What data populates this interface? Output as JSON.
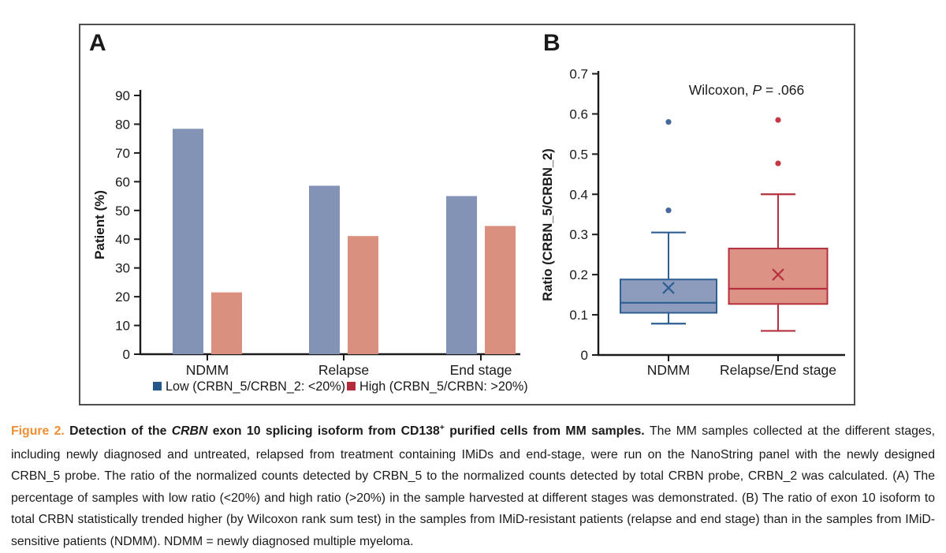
{
  "panels": {
    "a": "A",
    "b": "B"
  },
  "colors": {
    "bar_blue": "#8393b5",
    "bar_red": "#d9907f",
    "box_blue_fill": "#8d9cbd",
    "box_blue_stroke": "#2e5f93",
    "box_red_fill": "#dc9285",
    "box_red_stroke": "#b5303f",
    "legend_blue": "#24578a",
    "legend_red": "#b42b3b",
    "outlier_blue": "#46699b",
    "outlier_red": "#c23a46",
    "axis": "#1a1a1a",
    "caption_label_orange": "#ef8e33",
    "border_gray": "#4f4f4f"
  },
  "chart_data": [
    {
      "type": "bar",
      "panel": "A",
      "ylabel": "Patient (%)",
      "ylim": [
        0,
        90
      ],
      "yticks": [
        {
          "v": 0,
          "label": "0"
        },
        {
          "v": 10,
          "label": "10"
        },
        {
          "v": 20,
          "label": "20"
        },
        {
          "v": 30,
          "label": "30"
        },
        {
          "v": 40,
          "label": "40"
        },
        {
          "v": 50,
          "label": "50"
        },
        {
          "v": 60,
          "label": "60"
        },
        {
          "v": 70,
          "label": "70"
        },
        {
          "v": 80,
          "label": "80"
        },
        {
          "v": 90,
          "label": "90"
        }
      ],
      "categories": [
        "NDMM",
        "Relapse",
        "End stage"
      ],
      "series": [
        {
          "name": "Low (CRBN_5/CRBN_2: <20%)",
          "color_key": "blue",
          "values": [
            78.4,
            58.6,
            55.0
          ]
        },
        {
          "name": "High (CRBN_5/CRBN: >20%)",
          "color_key": "red",
          "values": [
            21.5,
            41.1,
            44.6
          ]
        }
      ],
      "legend_position": "bottom",
      "grid": false
    },
    {
      "type": "boxplot",
      "panel": "B",
      "ylabel": "Ratio (CRBN_5/CRBN_2)",
      "ylim": [
        0,
        0.7
      ],
      "yticks": [
        {
          "v": 0,
          "label": "0"
        },
        {
          "v": 0.1,
          "label": "0.1"
        },
        {
          "v": 0.2,
          "label": "0.2"
        },
        {
          "v": 0.3,
          "label": "0.3"
        },
        {
          "v": 0.4,
          "label": "0.4"
        },
        {
          "v": 0.5,
          "label": "0.5"
        },
        {
          "v": 0.6,
          "label": "0.6"
        },
        {
          "v": 0.7,
          "label": "0.7"
        }
      ],
      "categories": [
        "NDMM",
        "Relapse/End stage"
      ],
      "annotation": {
        "prefix": "Wilcoxon, ",
        "italic": "P",
        "suffix": " = .066"
      },
      "boxes": [
        {
          "label": "NDMM",
          "color_key": "blue",
          "whisker_low": 0.078,
          "q1": 0.105,
          "median": 0.13,
          "q3": 0.188,
          "whisker_high": 0.305,
          "mean": 0.167,
          "outliers": [
            0.36,
            0.58
          ]
        },
        {
          "label": "Relapse/End stage",
          "color_key": "red",
          "whisker_low": 0.06,
          "q1": 0.127,
          "median": 0.165,
          "q3": 0.265,
          "whisker_high": 0.4,
          "mean": 0.2,
          "outliers": [
            0.477,
            0.585
          ]
        }
      ],
      "grid": false
    }
  ],
  "caption": {
    "segments": [
      {
        "text": "Figure 2. ",
        "style": "label"
      },
      {
        "text": "Detection of the ",
        "style": "bold"
      },
      {
        "text": "CRBN",
        "style": "bold-italic"
      },
      {
        "text": " exon 10 splicing isoform from CD138",
        "style": "bold"
      },
      {
        "text": "+",
        "style": "sup"
      },
      {
        "text": " purified cells from MM samples. ",
        "style": "bold"
      },
      {
        "text": "The MM samples collected at the different stages, including newly diagnosed and untreated, relapsed from treatment containing IMiDs and end-stage, were run on the NanoString panel with the newly designed CRBN_5 probe. The ratio of the normalized counts detected by CRBN_5 to the normalized counts detected by total CRBN probe, CRBN_2 was calculated. (A) The percentage of samples with low ratio (<20%) and high ratio (>20%) in the sample harvested at different stages was demonstrated. (B) The ratio of exon 10 isoform to total CRBN statistically trended higher (by Wilcoxon rank sum test) in the samples from IMiD-resistant patients (relapse and end stage) than in the samples from IMiD-sensitive patients (NDMM). NDMM = newly diagnosed multiple myeloma.",
        "style": "normal"
      }
    ]
  }
}
